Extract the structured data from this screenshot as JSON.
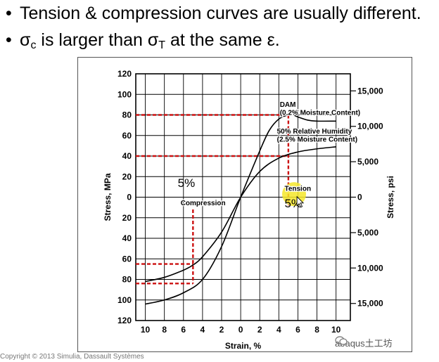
{
  "slide": {
    "bullet_1": "Tension & compression curves are usually different.",
    "bullet_2_prefix": "σ",
    "bullet_2_sub1": "c",
    "bullet_2_mid": " is larger than σ",
    "bullet_2_sub2": "T",
    "bullet_2_suffix": " at the same ε.",
    "bullet_char": "•"
  },
  "footer": {
    "copyright": "Copyright © 2013 Simulia, Dassault Systèmes"
  },
  "watermark": {
    "text": "abaqus土工坊"
  },
  "chart_data": {
    "type": "line",
    "xlabel": "Strain, %",
    "ylabel_left": "Stress, MPa",
    "ylabel_right": "Stress, psi",
    "x_ticks": [
      "10",
      "8",
      "6",
      "4",
      "2",
      "0",
      "2",
      "4",
      "6",
      "8",
      "10"
    ],
    "x_tick_values": [
      -10,
      -8,
      -6,
      -4,
      -2,
      0,
      2,
      4,
      6,
      8,
      10
    ],
    "y_ticks": [
      "120",
      "100",
      "80",
      "60",
      "40",
      "20",
      "0",
      "20",
      "40",
      "60",
      "80",
      "100",
      "120"
    ],
    "y_tick_values": [
      120,
      100,
      80,
      60,
      40,
      20,
      0,
      -20,
      -40,
      -60,
      -80,
      -100,
      -120
    ],
    "psi_ticks": [
      "15,000",
      "10,000",
      "5,000",
      "0",
      "5,000",
      "10,000",
      "15,000"
    ],
    "psi_tick_values_mpa": [
      103.4,
      68.9,
      34.5,
      0,
      -34.5,
      -68.9,
      -103.4
    ],
    "xlim": [
      -11,
      11.5
    ],
    "ylim": [
      -120,
      120
    ],
    "grid": true,
    "series": [
      {
        "name": "DAM (0.2% Moisture Content)",
        "color": "#000000",
        "x": [
          -10,
          -8,
          -6,
          -4,
          -2,
          0,
          2,
          3,
          4,
          5,
          5.5,
          6,
          7,
          8,
          10
        ],
        "y": [
          -104,
          -100,
          -93,
          -80,
          -48,
          0,
          45,
          65,
          76,
          80,
          80,
          78,
          75,
          74,
          74
        ]
      },
      {
        "name": "50% Relative Humidity (2.5% Moisture Content)",
        "color": "#000000",
        "x": [
          -10,
          -8,
          -6,
          -5,
          -4,
          -2,
          0,
          2,
          4,
          6,
          8,
          10
        ],
        "y": [
          -82,
          -78,
          -71,
          -66,
          -58,
          -34,
          0,
          25,
          38,
          44,
          47,
          49
        ]
      }
    ],
    "annotations": [
      {
        "text": "DAM",
        "x": 4.1,
        "y": 88
      },
      {
        "text": "(0.2% Moisture Content)",
        "x": 4.1,
        "y": 80
      },
      {
        "text": "50% Relative Humidity",
        "x": 3.8,
        "y": 62
      },
      {
        "text": "(2.5% Moisture Content)",
        "x": 3.8,
        "y": 54
      },
      {
        "text": "Compression",
        "x": -6.3,
        "y": -8
      },
      {
        "text": "Tension",
        "x": 4.6,
        "y": 6
      },
      {
        "text": "5%",
        "x": -6.6,
        "y": 10
      },
      {
        "text": "5%",
        "x": 4.6,
        "y": -10
      }
    ],
    "reference_lines": {
      "color": "#cc1111",
      "tension_strain": 5,
      "compression_strain": -5,
      "tension_stress_dam": 80,
      "tension_stress_rh": 40,
      "compression_stress_dam": -84,
      "compression_stress_rh": -65
    },
    "highlight": {
      "color": "#f5e62a",
      "x": 5.6,
      "y": 3
    }
  }
}
